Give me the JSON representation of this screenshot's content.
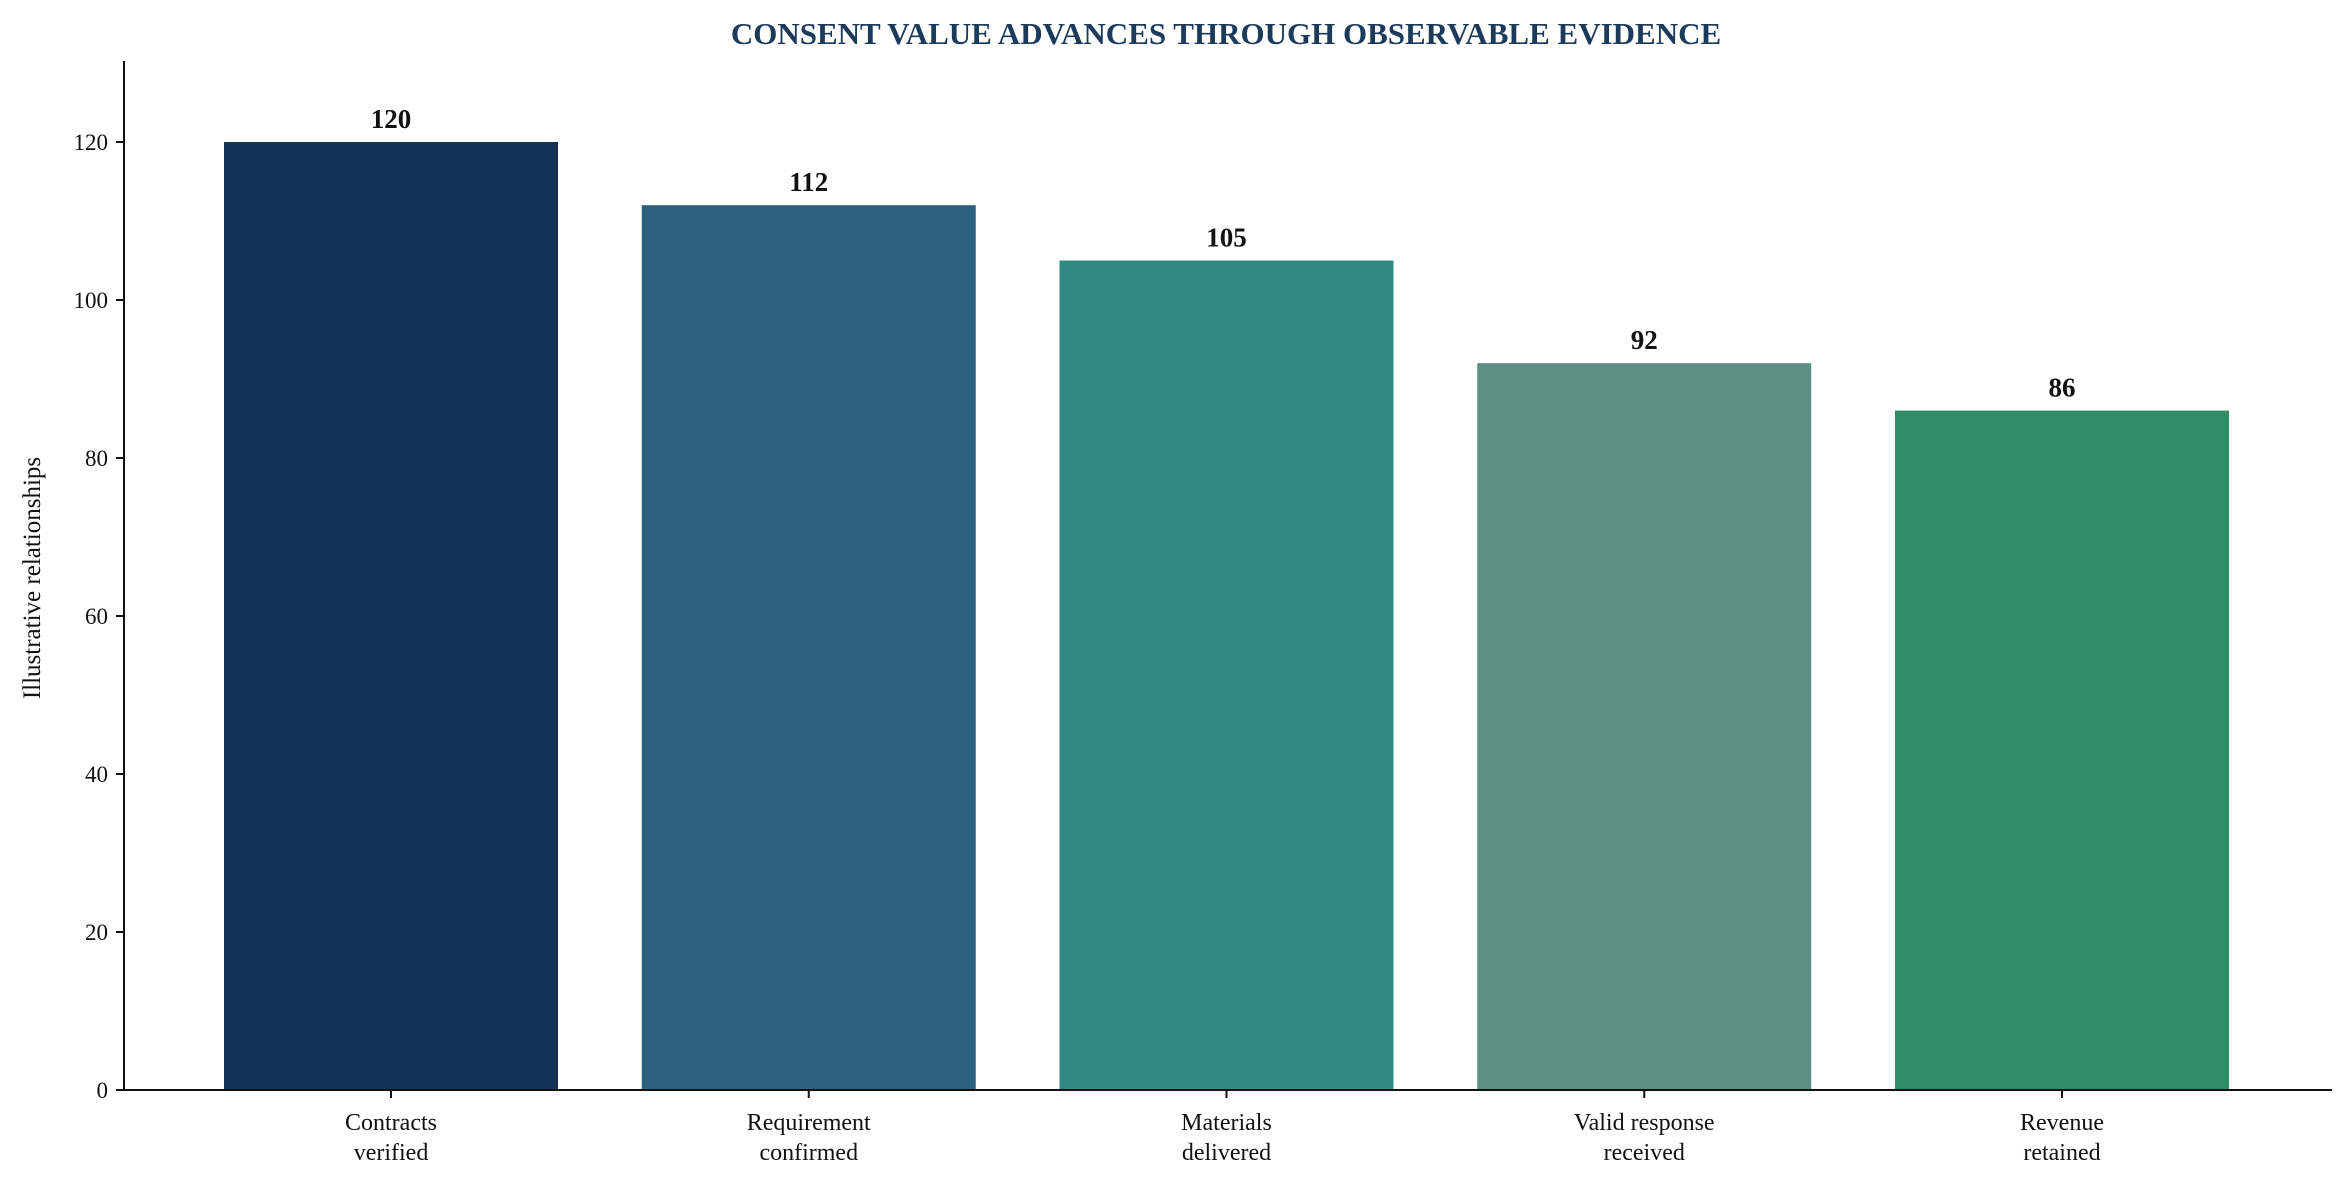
{
  "chart_data": {
    "type": "bar",
    "title": "CONSENT VALUE ADVANCES THROUGH OBSERVABLE EVIDENCE",
    "xlabel": "",
    "ylabel": "Illustrative relationships",
    "categories": [
      [
        "Contracts",
        "verified"
      ],
      [
        "Requirement",
        "confirmed"
      ],
      [
        "Materials",
        "delivered"
      ],
      [
        "Valid response",
        "received"
      ],
      [
        "Revenue",
        "retained"
      ]
    ],
    "values": [
      120,
      112,
      105,
      92,
      86
    ],
    "data_labels": [
      "120",
      "112",
      "105",
      "92",
      "86"
    ],
    "ylim": [
      0,
      130
    ],
    "yticks": [
      0,
      20,
      40,
      60,
      80,
      100,
      120
    ],
    "grid": false,
    "legend": "none",
    "colors": {
      "title": "#1b3a5c",
      "bars": [
        "#143356",
        "#2a617f",
        "#328885",
        "#5b8f81",
        "#308b67"
      ],
      "axis": "#111111"
    }
  }
}
